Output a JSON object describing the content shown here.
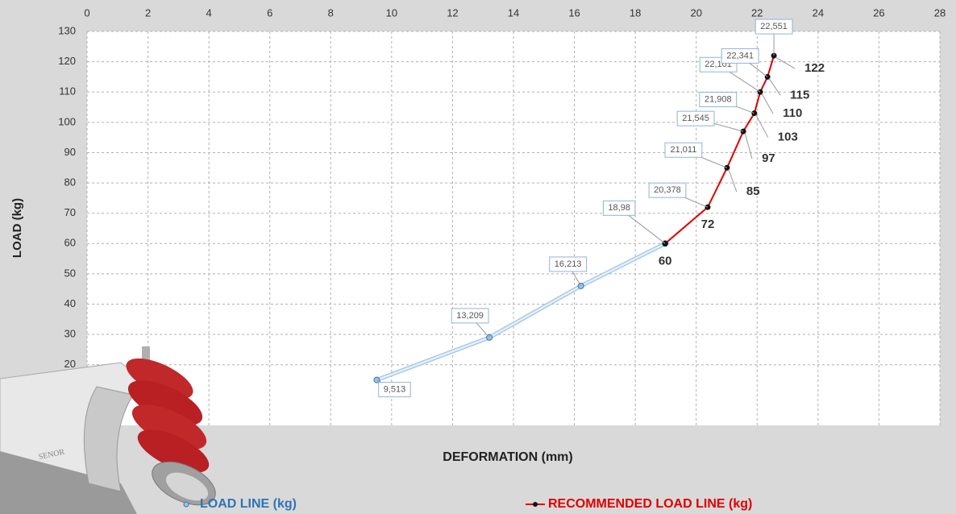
{
  "chart_data": {
    "type": "line",
    "x_label": "DEFORMATION (mm)",
    "y_label": "LOAD (kg)",
    "xlim": [
      0,
      28
    ],
    "xticks": [
      0,
      2,
      4,
      6,
      8,
      10,
      12,
      14,
      16,
      18,
      20,
      22,
      24,
      26,
      28
    ],
    "ylim": [
      0,
      130
    ],
    "yticks": [
      20,
      30,
      40,
      50,
      60,
      70,
      80,
      90,
      100,
      110,
      120,
      130
    ],
    "grid": true,
    "series": [
      {
        "name": "LOAD LINE (kg)",
        "color": "#2e75b6",
        "x": [
          9.513,
          13.209,
          16.213,
          18.98
        ],
        "x_labels": [
          "9,513",
          "13,209",
          "16,213",
          null
        ],
        "values": [
          15,
          29,
          46,
          60
        ]
      },
      {
        "name": "RECOMMENDED LOAD LINE (kg)",
        "color": "#e00000",
        "x": [
          18.98,
          20.378,
          21.011,
          21.545,
          21.908,
          22.101,
          22.341,
          22.551
        ],
        "x_labels": [
          "18,98",
          "20,378",
          "21,011",
          "21,545",
          "21,908",
          "22,101",
          "22,341",
          "22,551"
        ],
        "values": [
          60,
          72,
          85,
          97,
          103,
          110,
          115,
          122
        ]
      }
    ]
  },
  "image_text": "SENOR"
}
